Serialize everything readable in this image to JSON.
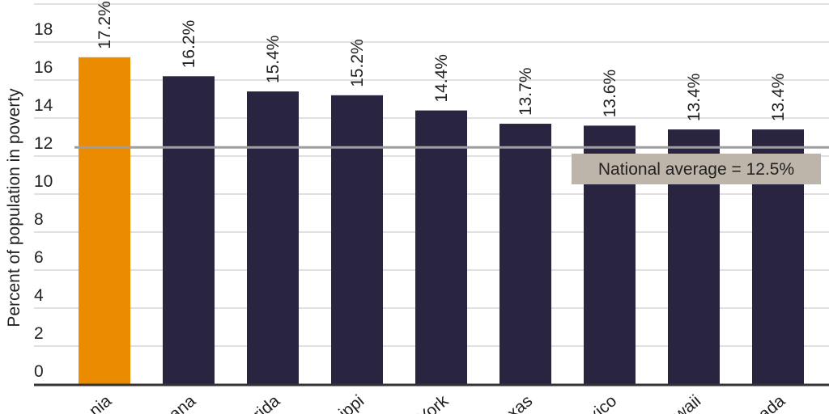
{
  "chart_data": {
    "type": "bar",
    "ylabel": "Percent of population in poverty",
    "ylim": [
      0,
      20
    ],
    "yticks": [
      0,
      2,
      4,
      6,
      8,
      10,
      12,
      14,
      16,
      18
    ],
    "grid": true,
    "categories": [
      "nia",
      "ana",
      "rida",
      "ippi",
      "York",
      "xas",
      "xico",
      "waii",
      "ada"
    ],
    "values": [
      17.2,
      16.2,
      15.4,
      15.2,
      14.4,
      13.7,
      13.6,
      13.4,
      13.4
    ],
    "data_labels": [
      "17.2%",
      "16.2%",
      "15.4%",
      "15.2%",
      "14.4%",
      "13.7%",
      "13.6%",
      "13.4%",
      "13.4%"
    ],
    "highlight_index": 0,
    "colors": {
      "highlight": "#EB8C00",
      "bar": "#29243F",
      "reference_line": "#9E9E9E",
      "annotation_bg": "#BEB5AA"
    },
    "reference_line": {
      "value": 12.5,
      "label": "National average = 12.5%"
    }
  }
}
